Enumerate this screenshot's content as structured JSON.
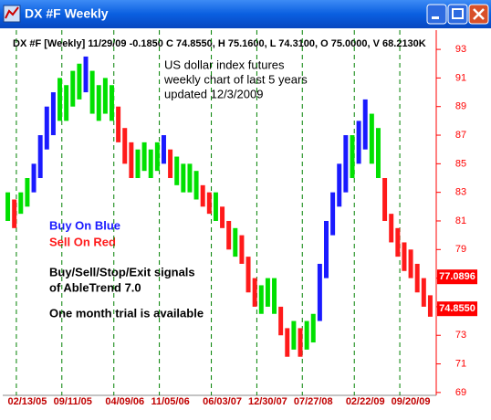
{
  "window_title": "DX #F Weekly",
  "chart_data": {
    "type": "range-bar",
    "title": "DX #F [Weekly] 11/29/09 -0.1850 C 74.8550, H 75.1600, L 74.3100, O 75.0000, V 68.2130K",
    "annotations": [
      "US dollar index futures",
      "weekly chart of last 5 years",
      "updated 12/3/2009"
    ],
    "legend": [
      {
        "text": "Buy On Blue",
        "color": "#1a1aff"
      },
      {
        "text": "Sell On Red",
        "color": "#ff1a1a"
      }
    ],
    "notes": [
      "Buy/Sell/Stop/Exit signals",
      "of AbleTrend 7.0",
      "One month trial is available"
    ],
    "categories": [
      null,
      null,
      null,
      "02/13/05",
      null,
      null,
      null,
      null,
      null,
      null,
      "09/11/05",
      null,
      null,
      null,
      null,
      null,
      null,
      null,
      "04/09/06",
      null,
      null,
      null,
      null,
      null,
      null,
      "11/05/06",
      null,
      null,
      null,
      null,
      null,
      null,
      null,
      "06/03/07",
      null,
      null,
      null,
      null,
      null,
      null,
      "12/30/07",
      null,
      null,
      null,
      null,
      null,
      null,
      "07/27/08",
      null,
      null,
      null,
      null,
      null,
      null,
      null,
      "02/22/09",
      null,
      null,
      null,
      null,
      null,
      null,
      "09/20/09",
      null,
      null,
      null
    ],
    "high": [
      83,
      82.5,
      83,
      84,
      85,
      87,
      89,
      90,
      91,
      90.5,
      91.5,
      92,
      92.5,
      91.5,
      90.5,
      91,
      90.5,
      89,
      87.5,
      86.5,
      86,
      86.5,
      86,
      86.5,
      87,
      86,
      85.5,
      85,
      85,
      84.5,
      83.5,
      83,
      83,
      82,
      81,
      80.5,
      80,
      78.5,
      77,
      76.5,
      77,
      77,
      75,
      73.5,
      74,
      73.5,
      74,
      74.5,
      78,
      81,
      83,
      85,
      87,
      87,
      88,
      89.5,
      88.5,
      87.5,
      84,
      81.5,
      80.5,
      79.5,
      79,
      78,
      77,
      75.8
    ],
    "low": [
      81,
      80.5,
      81.5,
      82,
      83,
      84,
      86,
      87,
      88,
      88,
      89,
      89.5,
      90,
      88.5,
      88,
      88.5,
      88,
      86.5,
      85,
      84,
      84,
      84.5,
      84,
      84.5,
      85,
      84,
      83.5,
      83,
      83,
      82.5,
      82,
      81.5,
      81,
      80.5,
      79,
      78.5,
      78,
      76,
      75,
      74.5,
      75,
      74.5,
      73,
      71.5,
      72,
      71.5,
      72,
      72.5,
      74,
      77,
      80,
      82,
      83,
      84,
      85,
      86,
      85,
      84,
      81,
      79.5,
      78.5,
      77.5,
      77,
      76,
      75,
      74.3
    ],
    "colors": [
      "#00e000",
      "#ff1a1a",
      "#00e000",
      "#00e000",
      "#1a1aff",
      "#1a1aff",
      "#1a1aff",
      "#1a1aff",
      "#00e000",
      "#00e000",
      "#00e000",
      "#00e000",
      "#1a1aff",
      "#00e000",
      "#00e000",
      "#00e000",
      "#00e000",
      "#ff1a1a",
      "#ff1a1a",
      "#ff1a1a",
      "#00e000",
      "#00e000",
      "#00e000",
      "#00e000",
      "#1a1aff",
      "#ff1a1a",
      "#00e000",
      "#00e000",
      "#00e000",
      "#00e000",
      "#ff1a1a",
      "#ff1a1a",
      "#00e000",
      "#ff1a1a",
      "#ff1a1a",
      "#00e000",
      "#ff1a1a",
      "#ff1a1a",
      "#ff1a1a",
      "#00e000",
      "#00e000",
      "#00e000",
      "#ff1a1a",
      "#ff1a1a",
      "#00e000",
      "#ff1a1a",
      "#00e000",
      "#00e000",
      "#1a1aff",
      "#1a1aff",
      "#1a1aff",
      "#1a1aff",
      "#1a1aff",
      "#00e000",
      "#1a1aff",
      "#1a1aff",
      "#00e000",
      "#00e000",
      "#ff1a1a",
      "#ff1a1a",
      "#ff1a1a",
      "#ff1a1a",
      "#ff1a1a",
      "#ff1a1a",
      "#ff1a1a",
      "#ff1a1a"
    ],
    "ylim": [
      68.8,
      93.9
    ],
    "yticks": [
      69,
      71,
      73,
      75,
      77,
      79,
      81,
      83,
      85,
      87,
      89,
      91,
      93
    ],
    "axis_color": "#ff0000",
    "grid_color": "#008000",
    "price_markers": [
      77.0896,
      {
        "value": 74.855,
        "label": "74.8550"
      }
    ]
  }
}
